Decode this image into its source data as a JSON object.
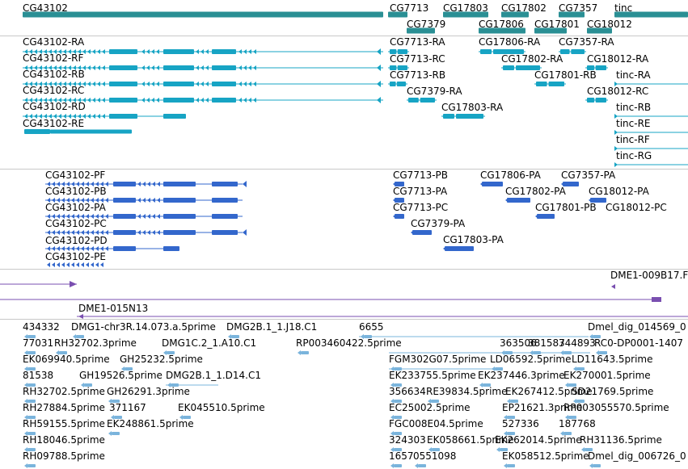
{
  "colors": {
    "gene": "#2a8f94",
    "transcript": "#17a4c4",
    "protein": "#3367cc",
    "clone": "#7a4fb0",
    "est": "#7ab4dc",
    "divider": "#c8c8c8"
  },
  "genes": [
    "CG43102",
    "CG7713",
    "CG17803",
    "CG17802",
    "CG7357",
    "tinc",
    "CG7379",
    "CG17806",
    "CG17801",
    "CG18012"
  ],
  "transcripts": [
    "CG43102-RA",
    "CG43102-RF",
    "CG43102-RB",
    "CG43102-RC",
    "CG43102-RD",
    "CG43102-RE",
    "CG7713-RA",
    "CG7713-RC",
    "CG7713-RB",
    "CG7379-RA",
    "CG17806-RA",
    "CG17803-RA",
    "CG7357-RA",
    "CG17802-RA",
    "CG18012-RA",
    "CG17801-RB",
    "tinc-RA",
    "CG18012-RC",
    "tinc-RB",
    "tinc-RE",
    "tinc-RF",
    "tinc-RG"
  ],
  "proteins": [
    "CG43102-PF",
    "CG43102-PB",
    "CG43102-PA",
    "CG43102-PC",
    "CG43102-PD",
    "CG43102-PE",
    "CG7713-PB",
    "CG7713-PA",
    "CG7713-PC",
    "CG7379-PA",
    "CG17803-PA",
    "CG17806-PA",
    "CG7357-PA",
    "CG17802-PA",
    "CG18012-PA",
    "CG17801-PB",
    "CG18012-PC"
  ],
  "clones": [
    "DME1-009B17.F",
    "DME1-015N13"
  ],
  "ests": [
    "434332",
    "DMG1-chr3R.14.073.a.5prime",
    "DMG2B.1_1.J18.C1",
    "6655",
    "Dmel_dig_014569_0",
    "77031",
    "RH32702.3prime",
    "DMG1C.2_1.A10.C1",
    "RP003460422.5prime",
    "363506",
    "381587",
    "344893",
    "RC0-DP0001-1407",
    "EK069940.5prime",
    "GH25232.5prime",
    "FGM302G07.5prime",
    "LD06592.5prime",
    "LD11643.5prime",
    "81538",
    "GH19526.5prime",
    "DMG2B.1_1.D14.C1",
    "EK233755.5prime",
    "EK237446.3prime",
    "EK270001.5prime",
    "RH32702.5prime",
    "GH26291.3prime",
    "356634",
    "RE39834.5prime",
    "EK267412.5prime",
    "SD21769.5prime",
    "RH27884.5prime",
    "371167",
    "EK045510.5prime",
    "EC25002.5prime",
    "EP21621.3prime",
    "RP003055570.5prime",
    "RH59155.5prime",
    "EK248861.5prime",
    "FGC008E04.5prime",
    "527336",
    "187768",
    "RH18046.5prime",
    "324303",
    "EK058661.5prime",
    "EK262014.5prime",
    "RH31136.5prime",
    "RH09788.5prime",
    "1657",
    "0551098",
    "EK058512.5prime",
    "Dmel_dig_006726_0"
  ]
}
